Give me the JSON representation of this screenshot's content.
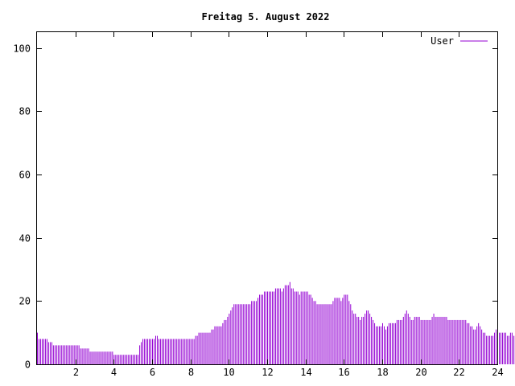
{
  "chart_data": {
    "type": "bar",
    "title": "Freitag 5. August 2022",
    "xlabel": "",
    "ylabel": "",
    "xlim": [
      0,
      24
    ],
    "ylim": [
      0,
      105
    ],
    "xticks": [
      2,
      4,
      6,
      8,
      10,
      12,
      14,
      16,
      18,
      20,
      22,
      24
    ],
    "yticks": [
      0,
      20,
      40,
      60,
      80,
      100
    ],
    "grid": false,
    "legend_position": "top-right",
    "series_color": "#9400d3",
    "series": [
      {
        "name": "User",
        "sample_interval_minutes": 5,
        "values": [
          10,
          8,
          8,
          8,
          8,
          8,
          8,
          7,
          7,
          7,
          6,
          6,
          6,
          6,
          6,
          6,
          6,
          6,
          6,
          6,
          6,
          6,
          6,
          6,
          6,
          6,
          6,
          5,
          5,
          5,
          5,
          5,
          5,
          4,
          4,
          4,
          4,
          4,
          4,
          4,
          4,
          4,
          4,
          4,
          4,
          4,
          4,
          4,
          3,
          3,
          3,
          3,
          3,
          3,
          3,
          3,
          3,
          3,
          3,
          3,
          3,
          3,
          3,
          3,
          6,
          7,
          8,
          8,
          8,
          8,
          8,
          8,
          8,
          8,
          9,
          9,
          8,
          8,
          8,
          8,
          8,
          8,
          8,
          8,
          8,
          8,
          8,
          8,
          8,
          8,
          8,
          8,
          8,
          8,
          8,
          8,
          8,
          8,
          8,
          9,
          9,
          10,
          10,
          10,
          10,
          10,
          10,
          10,
          10,
          11,
          11,
          12,
          12,
          12,
          12,
          12,
          13,
          14,
          14,
          15,
          16,
          17,
          18,
          19,
          19,
          19,
          19,
          19,
          19,
          19,
          19,
          19,
          19,
          19,
          20,
          20,
          20,
          20,
          21,
          22,
          22,
          22,
          23,
          23,
          23,
          23,
          23,
          23,
          23,
          24,
          24,
          24,
          24,
          23,
          24,
          25,
          25,
          25,
          26,
          24,
          24,
          23,
          23,
          23,
          22,
          23,
          23,
          23,
          23,
          23,
          22,
          22,
          21,
          20,
          20,
          19,
          19,
          19,
          19,
          19,
          19,
          19,
          19,
          19,
          19,
          20,
          21,
          21,
          21,
          21,
          20,
          21,
          22,
          22,
          22,
          20,
          19,
          17,
          16,
          16,
          15,
          15,
          14,
          15,
          15,
          16,
          17,
          17,
          16,
          15,
          14,
          13,
          12,
          12,
          12,
          12,
          13,
          12,
          11,
          12,
          13,
          13,
          13,
          13,
          13,
          14,
          14,
          14,
          14,
          15,
          16,
          17,
          16,
          15,
          14,
          14,
          15,
          15,
          15,
          15,
          14,
          14,
          14,
          14,
          14,
          14,
          14,
          15,
          16,
          15,
          15,
          15,
          15,
          15,
          15,
          15,
          15,
          14,
          14,
          14,
          14,
          14,
          14,
          14,
          14,
          14,
          14,
          14,
          14,
          13,
          13,
          12,
          12,
          11,
          11,
          12,
          13,
          12,
          11,
          10,
          10,
          9,
          9,
          9,
          9,
          9,
          10,
          11,
          10,
          10,
          10,
          10,
          10,
          10,
          9,
          9,
          10,
          10,
          9,
          9,
          9
        ]
      }
    ]
  }
}
